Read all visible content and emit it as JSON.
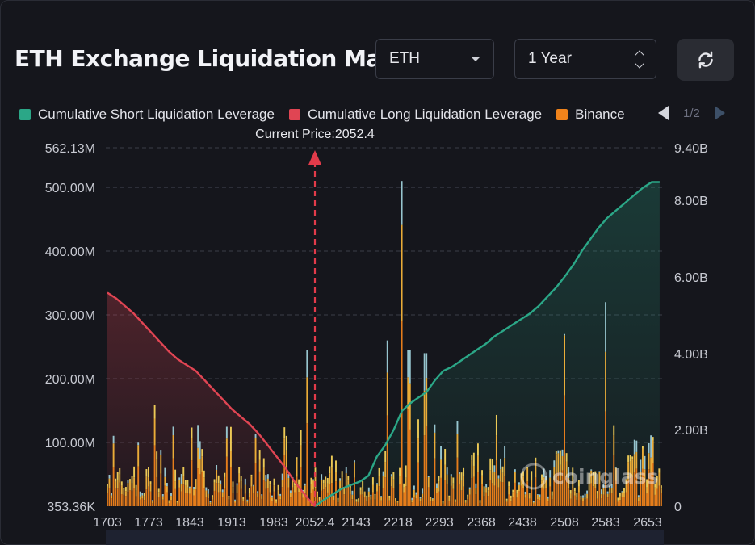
{
  "header": {
    "title": "ETH Exchange Liquidation Map"
  },
  "controls": {
    "coin": {
      "value": "ETH",
      "icon": "caret-down-icon"
    },
    "range": {
      "value": "1 Year",
      "icon": "updown-chevron-icon"
    },
    "refresh": {
      "icon": "refresh-icon"
    }
  },
  "legend": {
    "items": [
      {
        "label": "Cumulative Short Liquidation Leverage",
        "color": "#2ba787"
      },
      {
        "label": "Cumulative Long Liquidation Leverage",
        "color": "#e04553"
      },
      {
        "label": "Binance",
        "color": "#f0831b"
      }
    ],
    "page": "1/2"
  },
  "watermark": "coinglass",
  "chart_data": {
    "type": "bar",
    "current_price": 2052.4,
    "current_price_label": "Current Price:2052.4",
    "x_tick_labels": [
      "1703",
      "1773",
      "1843",
      "1913",
      "1983",
      "2052.4",
      "2143",
      "2218",
      "2293",
      "2368",
      "2438",
      "2508",
      "2583",
      "2653"
    ],
    "y_left": {
      "ticks": [
        "562.13M",
        "500.00M",
        "400.00M",
        "300.00M",
        "200.00M",
        "100.00M",
        "353.36K"
      ],
      "range": [
        0,
        562.13
      ],
      "unit": "M"
    },
    "y_right": {
      "ticks": [
        "9.40B",
        "8.00B",
        "6.00B",
        "4.00B",
        "2.00B",
        "0"
      ],
      "range": [
        0,
        9.4
      ],
      "unit": "B"
    },
    "grid": "horizontal dashed",
    "series": [
      {
        "name": "Cumulative Long Liquidation Leverage",
        "axis": "right",
        "x": [
          1703,
          1718,
          1733,
          1748,
          1763,
          1778,
          1793,
          1808,
          1823,
          1838,
          1853,
          1868,
          1883,
          1898,
          1913,
          1928,
          1943,
          1958,
          1973,
          1988,
          2003,
          2018,
          2033,
          2045,
          2052.4
        ],
        "values": [
          5.6,
          5.45,
          5.25,
          5.05,
          4.8,
          4.55,
          4.3,
          4.05,
          3.85,
          3.7,
          3.55,
          3.3,
          3.05,
          2.8,
          2.55,
          2.35,
          2.15,
          1.9,
          1.6,
          1.3,
          1.0,
          0.65,
          0.35,
          0.12,
          0
        ]
      },
      {
        "name": "Cumulative Short Liquidation Leverage",
        "axis": "right",
        "x": [
          2052.4,
          2070,
          2090,
          2110,
          2130,
          2150,
          2165,
          2180,
          2195,
          2210,
          2225,
          2240,
          2255,
          2270,
          2285,
          2300,
          2315,
          2330,
          2345,
          2360,
          2375,
          2390,
          2405,
          2420,
          2435,
          2450,
          2465,
          2480,
          2495,
          2510,
          2525,
          2540,
          2555,
          2570,
          2585,
          2600,
          2615,
          2630,
          2645,
          2660,
          2673
        ],
        "values": [
          0,
          0.15,
          0.3,
          0.45,
          0.55,
          0.65,
          0.8,
          1.3,
          1.6,
          2.0,
          2.5,
          2.7,
          2.85,
          3.0,
          3.3,
          3.55,
          3.65,
          3.8,
          3.95,
          4.1,
          4.25,
          4.45,
          4.6,
          4.75,
          4.9,
          5.05,
          5.25,
          5.5,
          5.75,
          6.05,
          6.35,
          6.7,
          7.0,
          7.3,
          7.55,
          7.75,
          7.95,
          8.15,
          8.35,
          8.5,
          8.5
        ]
      },
      {
        "name": "Binance",
        "axis": "left",
        "x": [
          2225,
          2238,
          2249,
          2268,
          2360,
          2376,
          2478,
          2497,
          2504,
          2557,
          2573,
          2610,
          2625,
          2648,
          2667
        ],
        "values": [
          380,
          160,
          150,
          200,
          130,
          115,
          150,
          200,
          160,
          230,
          210,
          165,
          125,
          200,
          210
        ],
        "note": "Binance component of tallest visible bars; page shows ~270 stacked bars"
      }
    ],
    "bars": {
      "description": "stacked liquidation leverage bars per price level (orange/yellow/light-blue stacks)",
      "notable_peaks": [
        {
          "x": 2225,
          "total": 510
        },
        {
          "x": 2583,
          "total": 320
        },
        {
          "x": 2508,
          "total": 270
        },
        {
          "x": 2040,
          "total": 245
        },
        {
          "x": 2238,
          "total": 245
        },
        {
          "x": 2268,
          "total": 240
        },
        {
          "x": 2200,
          "total": 260
        }
      ]
    }
  }
}
